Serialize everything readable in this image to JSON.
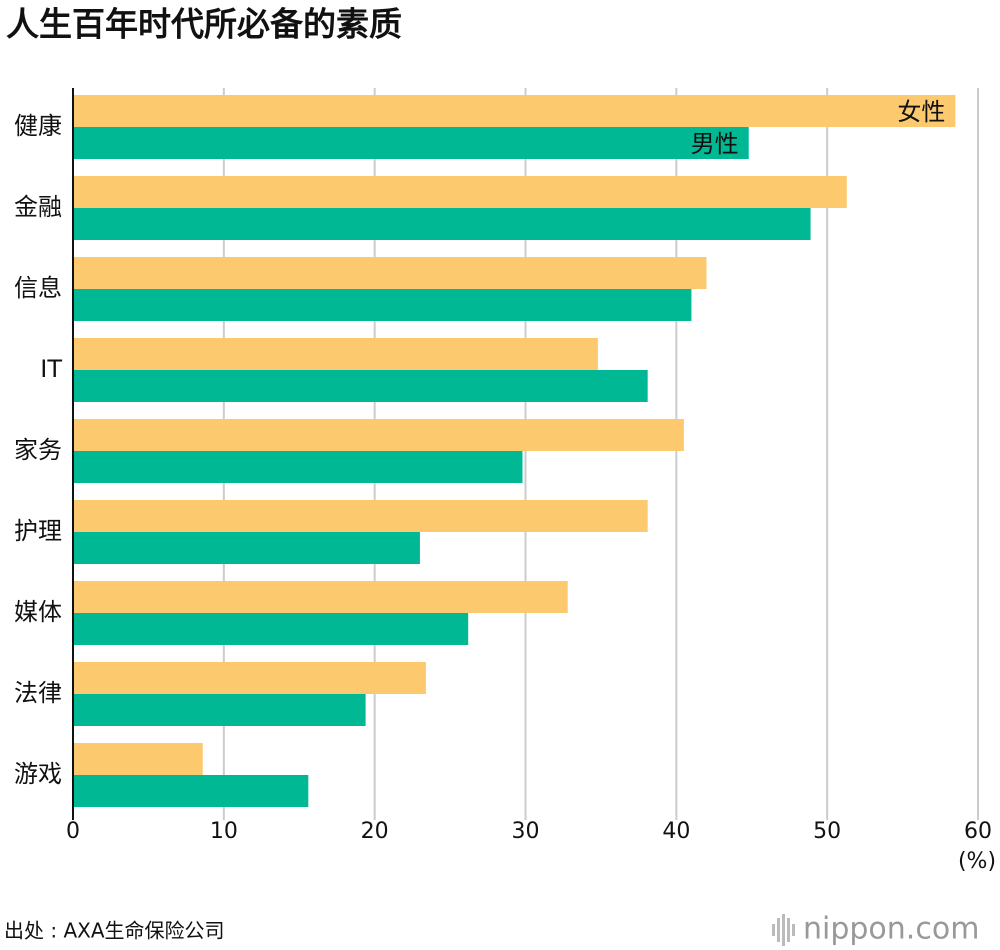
{
  "chart_data": {
    "type": "hbar",
    "title": "人生百年时代所必备的素质",
    "categories": [
      "健康",
      "金融",
      "信息",
      "IT",
      "家务",
      "护理",
      "媒体",
      "法律",
      "游戏"
    ],
    "series": [
      {
        "name": "女性",
        "color": "#fdc96f",
        "values": [
          58.5,
          51.3,
          42.0,
          34.8,
          40.5,
          38.1,
          32.8,
          23.4,
          8.6
        ]
      },
      {
        "name": "男性",
        "color": "#00b894",
        "values": [
          44.8,
          48.9,
          41.0,
          38.1,
          29.8,
          23.0,
          26.2,
          19.4,
          15.6
        ]
      }
    ],
    "xlim": [
      0,
      60
    ],
    "xticks": [
      0,
      10,
      20,
      30,
      40,
      50,
      60
    ],
    "grid": true,
    "unit_label": "(%)",
    "source": "出处 : AXA生命保险公司",
    "logo": "nippon.com"
  }
}
